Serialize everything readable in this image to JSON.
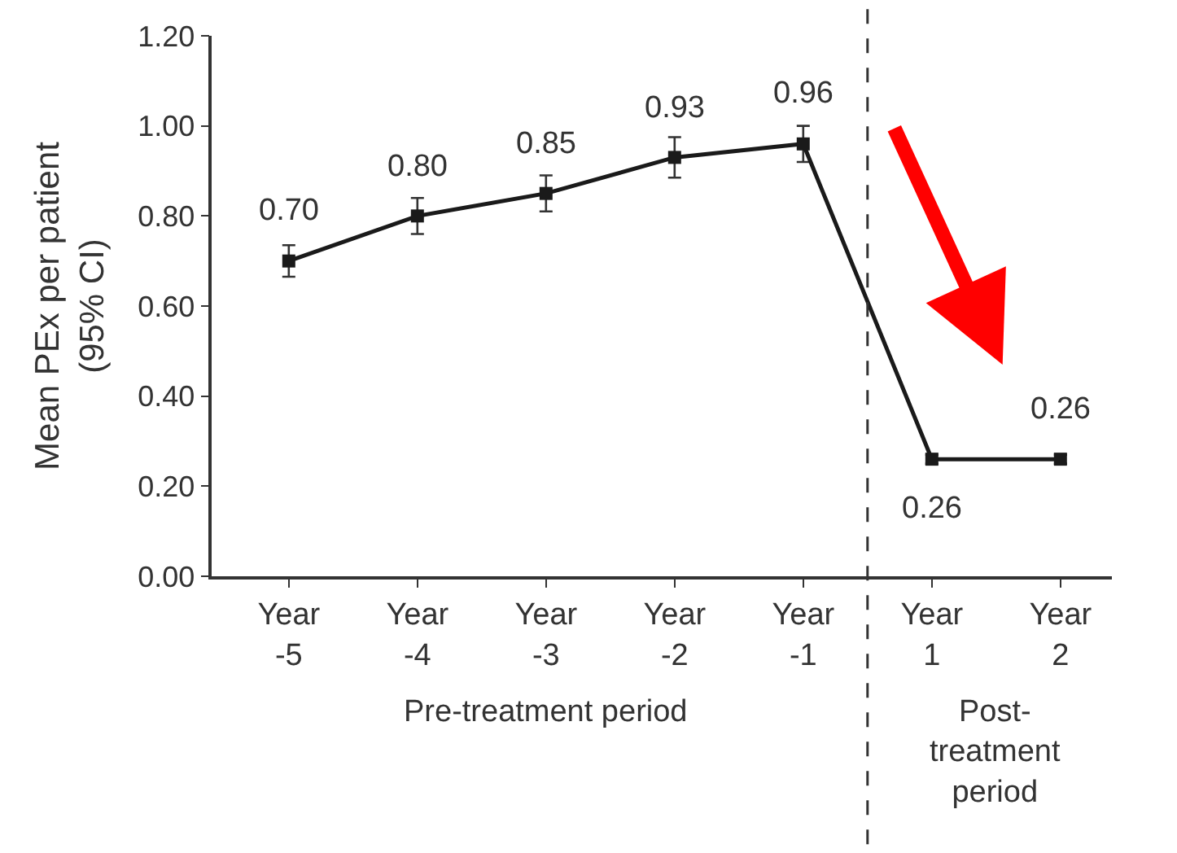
{
  "chart_data": {
    "type": "line",
    "ylabel": "Mean PEx per patient\n(95% CI)",
    "categories": [
      "Year\n-5",
      "Year\n-4",
      "Year\n-3",
      "Year\n-2",
      "Year\n-1",
      "Year\n1",
      "Year\n2"
    ],
    "values": [
      0.7,
      0.8,
      0.85,
      0.93,
      0.96,
      0.26,
      0.26
    ],
    "errors": [
      0.035,
      0.04,
      0.04,
      0.045,
      0.04,
      0.01,
      0.01
    ],
    "value_labels": [
      "0.70",
      "0.80",
      "0.85",
      "0.93",
      "0.96",
      "0.26",
      "0.26"
    ],
    "color": "#1a1a1a",
    "marker": "square",
    "line_style": "solid",
    "ylim": [
      0,
      1.2
    ],
    "yticks": [
      {
        "value": 0,
        "label": "0.00"
      },
      {
        "value": 0.2,
        "label": "0.20"
      },
      {
        "value": 0.4,
        "label": "0.40"
      },
      {
        "value": 0.6,
        "label": "0.60"
      },
      {
        "value": 0.8,
        "label": "0.80"
      },
      {
        "value": 1.0,
        "label": "1.00"
      },
      {
        "value": 1.2,
        "label": "1.20"
      }
    ],
    "annotations": [
      "Pre-treatment period",
      "Post-\ntreatment\nperiod"
    ]
  }
}
